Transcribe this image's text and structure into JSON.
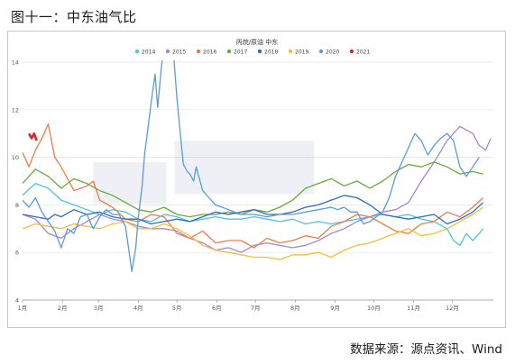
{
  "figure_title": "图十一：中东油气比",
  "source": "数据来源：源点资讯、Wind",
  "chart_data": {
    "type": "line",
    "title": "丙烷/原油 中东",
    "ylim": [
      4,
      14
    ],
    "yticks": [
      4,
      6,
      8,
      10,
      12,
      14
    ],
    "xlim": [
      0,
      366
    ],
    "xtick_labels": [
      "1月",
      "2月",
      "3月",
      "4月",
      "5月",
      "6月",
      "7月",
      "8月",
      "9月",
      "10月",
      "11月",
      "12月"
    ],
    "xtick_days": [
      0,
      31,
      59,
      90,
      120,
      151,
      181,
      212,
      243,
      273,
      304,
      334
    ],
    "legend_position": "top-center",
    "grid": "horizontal",
    "series": [
      {
        "name": "2014",
        "color": "#4fc3e8",
        "x": [
          0,
          10,
          20,
          30,
          40,
          50,
          60,
          70,
          80,
          90,
          100,
          110,
          120,
          130,
          140,
          150,
          160,
          170,
          180,
          190,
          200,
          210,
          220,
          230,
          240,
          250,
          260,
          270,
          280,
          290,
          300,
          310,
          320,
          330,
          335,
          340,
          345,
          350,
          355,
          358
        ],
        "y": [
          8.4,
          8.9,
          8.7,
          8.2,
          8.0,
          7.8,
          7.6,
          7.8,
          7.7,
          7.4,
          7.3,
          7.6,
          7.5,
          7.3,
          7.4,
          7.5,
          7.4,
          7.4,
          7.5,
          7.4,
          7.3,
          7.4,
          7.2,
          7.3,
          7.2,
          7.3,
          7.4,
          7.5,
          7.6,
          7.5,
          7.6,
          7.4,
          7.3,
          7.0,
          6.5,
          6.3,
          6.8,
          6.5,
          6.8,
          7.0
        ]
      },
      {
        "name": "2015",
        "color": "#a287d9",
        "x": [
          0,
          10,
          20,
          30,
          40,
          50,
          60,
          70,
          80,
          90,
          100,
          110,
          120,
          130,
          140,
          150,
          160,
          170,
          180,
          190,
          200,
          210,
          220,
          230,
          240,
          250,
          260,
          270,
          280,
          290,
          300,
          310,
          320,
          330,
          340,
          350,
          355,
          360,
          364
        ],
        "y": [
          7.6,
          7.4,
          6.8,
          6.6,
          7.0,
          7.3,
          7.6,
          7.4,
          7.3,
          7.1,
          7.0,
          7.0,
          6.9,
          6.6,
          6.4,
          6.1,
          6.2,
          6.0,
          6.3,
          6.4,
          6.3,
          6.2,
          6.3,
          6.5,
          6.8,
          7.0,
          7.3,
          7.5,
          7.7,
          7.8,
          8.1,
          9.0,
          9.8,
          10.7,
          11.3,
          11.0,
          10.5,
          10.3,
          10.8
        ]
      },
      {
        "name": "2016",
        "color": "#ef7c49",
        "x": [
          0,
          5,
          10,
          15,
          20,
          25,
          30,
          40,
          50,
          55,
          60,
          70,
          80,
          90,
          100,
          110,
          120,
          130,
          140,
          150,
          160,
          170,
          180,
          190,
          200,
          210,
          220,
          230,
          240,
          250,
          260,
          270,
          280,
          290,
          300,
          310,
          320,
          330,
          340,
          350,
          358
        ],
        "y": [
          10.2,
          9.6,
          10.3,
          10.8,
          11.4,
          10.0,
          9.6,
          8.6,
          8.8,
          9.0,
          8.2,
          7.9,
          7.4,
          7.3,
          7.6,
          7.5,
          6.8,
          6.6,
          6.9,
          6.4,
          6.5,
          6.5,
          6.2,
          6.6,
          6.4,
          6.5,
          6.7,
          6.6,
          7.1,
          7.3,
          7.6,
          7.5,
          7.2,
          6.9,
          6.8,
          7.2,
          7.3,
          7.7,
          7.5,
          7.9,
          8.3
        ]
      },
      {
        "name": "2017",
        "color": "#6aaa3a",
        "x": [
          0,
          10,
          20,
          30,
          40,
          50,
          60,
          70,
          80,
          90,
          100,
          110,
          120,
          130,
          140,
          150,
          160,
          170,
          180,
          190,
          200,
          210,
          220,
          230,
          240,
          250,
          260,
          270,
          280,
          290,
          300,
          310,
          320,
          330,
          340,
          350,
          358
        ],
        "y": [
          8.9,
          9.5,
          9.2,
          8.7,
          9.1,
          8.9,
          8.6,
          8.4,
          8.1,
          7.8,
          7.7,
          7.9,
          7.6,
          7.5,
          7.6,
          7.6,
          7.7,
          7.6,
          7.8,
          7.7,
          7.9,
          8.2,
          8.7,
          8.9,
          9.1,
          8.8,
          9.0,
          8.7,
          9.0,
          9.4,
          9.7,
          9.6,
          9.8,
          9.6,
          9.3,
          9.4,
          9.3
        ]
      },
      {
        "name": "2018",
        "color": "#2e6bbf",
        "x": [
          0,
          10,
          20,
          25,
          30,
          40,
          50,
          60,
          70,
          80,
          90,
          100,
          110,
          120,
          130,
          140,
          150,
          160,
          170,
          180,
          190,
          200,
          210,
          220,
          230,
          240,
          250,
          260,
          270,
          280,
          290,
          300,
          310,
          320,
          330,
          340,
          350,
          358
        ],
        "y": [
          7.6,
          7.5,
          7.4,
          7.6,
          7.5,
          7.8,
          7.6,
          7.7,
          7.5,
          7.4,
          7.4,
          7.2,
          7.3,
          7.4,
          7.3,
          7.5,
          7.7,
          7.6,
          7.7,
          7.8,
          7.6,
          7.6,
          7.7,
          7.9,
          8.0,
          8.2,
          8.4,
          8.3,
          8.0,
          7.6,
          7.5,
          7.4,
          7.5,
          7.6,
          7.2,
          7.4,
          7.7,
          8.1
        ]
      },
      {
        "name": "2019",
        "color": "#f2c132",
        "x": [
          0,
          10,
          20,
          30,
          40,
          50,
          60,
          70,
          80,
          90,
          100,
          110,
          120,
          130,
          140,
          150,
          160,
          170,
          180,
          190,
          200,
          210,
          220,
          230,
          240,
          250,
          260,
          270,
          280,
          290,
          300,
          310,
          320,
          330,
          340,
          350,
          358
        ],
        "y": [
          7.0,
          7.2,
          7.1,
          7.0,
          7.2,
          7.1,
          7.0,
          7.2,
          7.3,
          7.0,
          7.0,
          7.2,
          7.0,
          6.7,
          6.3,
          6.1,
          6.0,
          5.9,
          5.8,
          5.8,
          5.7,
          5.9,
          5.9,
          6.0,
          5.8,
          6.1,
          6.3,
          6.4,
          6.6,
          6.8,
          7.0,
          6.7,
          6.8,
          7.0,
          7.3,
          7.6,
          7.9
        ]
      },
      {
        "name": "2020",
        "color": "#5b9bd5",
        "x": [
          0,
          5,
          10,
          15,
          20,
          25,
          30,
          35,
          40,
          45,
          50,
          55,
          60,
          65,
          70,
          75,
          80,
          85,
          88,
          90,
          93,
          95,
          97,
          100,
          103,
          105,
          108,
          110,
          112,
          113,
          115,
          117,
          120,
          123,
          125,
          128,
          130,
          133,
          135,
          140,
          145,
          150,
          155,
          160,
          170,
          180,
          190,
          200,
          210,
          220,
          230,
          240,
          245,
          250,
          255,
          260,
          263,
          265,
          270,
          275,
          280,
          285,
          290,
          295,
          300,
          305,
          310,
          315,
          320,
          325,
          330,
          335,
          340,
          345,
          350,
          355
        ],
        "y": [
          8.2,
          7.9,
          8.3,
          7.7,
          7.3,
          6.9,
          6.2,
          7.0,
          6.8,
          7.5,
          7.6,
          7.0,
          7.5,
          7.8,
          7.6,
          7.6,
          7.1,
          5.2,
          6.2,
          7.5,
          8.8,
          10.2,
          11.0,
          12.3,
          13.5,
          12.1,
          13.8,
          14.7,
          15.2,
          14.8,
          15.0,
          14.6,
          12.5,
          10.8,
          9.7,
          9.4,
          9.3,
          9.0,
          9.6,
          8.6,
          8.3,
          8.0,
          7.9,
          7.8,
          7.6,
          7.6,
          7.5,
          7.6,
          7.6,
          7.7,
          7.8,
          7.9,
          7.8,
          7.9,
          7.7,
          7.7,
          7.4,
          7.2,
          7.3,
          7.5,
          7.7,
          8.3,
          9.2,
          9.8,
          10.4,
          11.0,
          10.7,
          10.1,
          10.5,
          10.8,
          11.0,
          10.7,
          9.6,
          9.2,
          9.6,
          10.0
        ]
      },
      {
        "name": "2021",
        "color": "#d42a2a",
        "x": [
          5,
          7,
          9,
          11
        ],
        "y": [
          11.0,
          10.8,
          11.0,
          10.7
        ]
      }
    ]
  }
}
